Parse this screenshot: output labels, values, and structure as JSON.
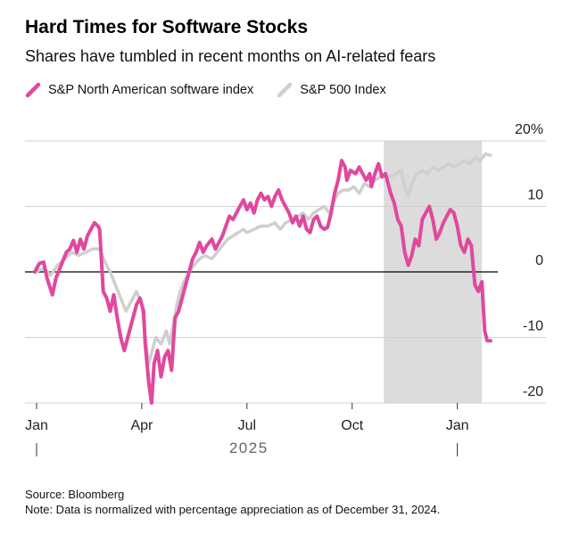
{
  "title": "Hard Times for Software Stocks",
  "subtitle": "Shares have tumbled in recent months on AI-related fears",
  "source": "Source: Bloomberg",
  "note": "Note: Data is normalized with percentage appreciation as of December 31, 2024.",
  "colors": {
    "software": "#e0489e",
    "sp500": "#cfcfcf",
    "shade": "#dcdcdc",
    "grid": "#d2d2d2",
    "zero": "#000000"
  },
  "chart_data": {
    "type": "line",
    "title": "Hard Times for Software Stocks",
    "subtitle": "Shares have tumbled in recent months on AI-related fears",
    "xlabel": "2025",
    "ylabel": "%",
    "ylim": [
      -20,
      20
    ],
    "yticks": [
      {
        "value": 20,
        "label": "20%"
      },
      {
        "value": 10,
        "label": "10"
      },
      {
        "value": 0,
        "label": "0"
      },
      {
        "value": -10,
        "label": "-10"
      },
      {
        "value": -20,
        "label": "-20"
      }
    ],
    "xlim": [
      0,
      13.0
    ],
    "xticks": [
      {
        "value": 0,
        "label": "Jan",
        "year_tick": true
      },
      {
        "value": 3,
        "label": "Apr",
        "year_tick": false
      },
      {
        "value": 6,
        "label": "Jul",
        "year_tick": false
      },
      {
        "value": 9,
        "label": "Oct",
        "year_tick": false
      },
      {
        "value": 12,
        "label": "Jan",
        "year_tick": true
      }
    ],
    "x_unit": "months since Jan 1, 2025",
    "shaded_region": [
      9.9,
      12.7
    ],
    "legend": [
      "S&P North American software index",
      "S&P 500 Index"
    ],
    "series": [
      {
        "name": "S&P North American software index",
        "color": "#e0489e",
        "points": [
          [
            -0.05,
            0
          ],
          [
            0.08,
            1.3
          ],
          [
            0.2,
            1.5
          ],
          [
            0.3,
            -1
          ],
          [
            0.45,
            -3.5
          ],
          [
            0.55,
            -1
          ],
          [
            0.7,
            1
          ],
          [
            0.85,
            3
          ],
          [
            0.95,
            3.5
          ],
          [
            1.05,
            4.8
          ],
          [
            1.15,
            3
          ],
          [
            1.25,
            5
          ],
          [
            1.35,
            3.5
          ],
          [
            1.45,
            5.5
          ],
          [
            1.55,
            6.5
          ],
          [
            1.65,
            7.5
          ],
          [
            1.75,
            7
          ],
          [
            1.8,
            6.5
          ],
          [
            1.9,
            -3
          ],
          [
            2,
            -4
          ],
          [
            2.1,
            -6
          ],
          [
            2.2,
            -3.5
          ],
          [
            2.3,
            -7
          ],
          [
            2.4,
            -10
          ],
          [
            2.5,
            -12
          ],
          [
            2.6,
            -10
          ],
          [
            2.7,
            -8
          ],
          [
            2.85,
            -5
          ],
          [
            2.95,
            -4
          ],
          [
            3.05,
            -6
          ],
          [
            3.1,
            -11
          ],
          [
            3.2,
            -17
          ],
          [
            3.28,
            -20
          ],
          [
            3.35,
            -14
          ],
          [
            3.45,
            -12
          ],
          [
            3.55,
            -16
          ],
          [
            3.65,
            -13
          ],
          [
            3.75,
            -12
          ],
          [
            3.85,
            -15
          ],
          [
            3.95,
            -7
          ],
          [
            4.05,
            -6
          ],
          [
            4.15,
            -4
          ],
          [
            4.25,
            -2
          ],
          [
            4.35,
            0
          ],
          [
            4.45,
            2
          ],
          [
            4.55,
            3
          ],
          [
            4.65,
            4.5
          ],
          [
            4.75,
            3
          ],
          [
            4.85,
            4
          ],
          [
            5,
            5
          ],
          [
            5.1,
            3.5
          ],
          [
            5.2,
            4.5
          ],
          [
            5.3,
            5.5
          ],
          [
            5.4,
            7
          ],
          [
            5.5,
            8.5
          ],
          [
            5.6,
            8
          ],
          [
            5.7,
            9
          ],
          [
            5.8,
            10
          ],
          [
            5.9,
            11
          ],
          [
            6,
            9.5
          ],
          [
            6.1,
            10.5
          ],
          [
            6.2,
            9
          ],
          [
            6.3,
            11
          ],
          [
            6.4,
            12
          ],
          [
            6.5,
            11
          ],
          [
            6.6,
            11.5
          ],
          [
            6.7,
            10
          ],
          [
            6.8,
            11.5
          ],
          [
            6.9,
            12.5
          ],
          [
            7,
            11
          ],
          [
            7.1,
            10
          ],
          [
            7.2,
            9
          ],
          [
            7.3,
            7.5
          ],
          [
            7.4,
            8.5
          ],
          [
            7.5,
            7
          ],
          [
            7.6,
            8.5
          ],
          [
            7.7,
            6.5
          ],
          [
            7.8,
            6
          ],
          [
            7.9,
            8
          ],
          [
            8,
            8.5
          ],
          [
            8.1,
            7
          ],
          [
            8.2,
            6.5
          ],
          [
            8.3,
            6.8
          ],
          [
            8.4,
            9
          ],
          [
            8.5,
            12
          ],
          [
            8.6,
            14
          ],
          [
            8.7,
            17
          ],
          [
            8.8,
            16
          ],
          [
            8.85,
            14
          ],
          [
            8.95,
            15.5
          ],
          [
            9.1,
            15
          ],
          [
            9.2,
            16
          ],
          [
            9.3,
            15
          ],
          [
            9.4,
            14
          ],
          [
            9.5,
            15
          ],
          [
            9.55,
            13
          ],
          [
            9.65,
            15
          ],
          [
            9.75,
            16.5
          ],
          [
            9.85,
            14.5
          ],
          [
            9.95,
            15
          ],
          [
            10,
            14
          ],
          [
            10.1,
            12
          ],
          [
            10.2,
            10.5
          ],
          [
            10.3,
            8
          ],
          [
            10.4,
            7
          ],
          [
            10.5,
            3
          ],
          [
            10.6,
            1
          ],
          [
            10.7,
            2.5
          ],
          [
            10.8,
            5
          ],
          [
            10.9,
            4
          ],
          [
            11,
            8
          ],
          [
            11.1,
            9
          ],
          [
            11.2,
            10
          ],
          [
            11.3,
            8
          ],
          [
            11.4,
            5
          ],
          [
            11.5,
            6
          ],
          [
            11.6,
            7.5
          ],
          [
            11.7,
            8.5
          ],
          [
            11.8,
            9.5
          ],
          [
            11.9,
            9
          ],
          [
            12,
            7
          ],
          [
            12.1,
            4
          ],
          [
            12.2,
            3
          ],
          [
            12.3,
            5
          ],
          [
            12.4,
            4
          ],
          [
            12.5,
            -2
          ],
          [
            12.6,
            -3
          ],
          [
            12.7,
            -1.5
          ],
          [
            12.78,
            -9
          ],
          [
            12.85,
            -10.5
          ],
          [
            12.95,
            -10.5
          ]
        ]
      },
      {
        "name": "S&P 500 Index",
        "color": "#cfcfcf",
        "points": [
          [
            -0.05,
            0
          ],
          [
            0.2,
            0.5
          ],
          [
            0.4,
            -0.5
          ],
          [
            0.6,
            1
          ],
          [
            0.8,
            2
          ],
          [
            1,
            3
          ],
          [
            1.2,
            2.5
          ],
          [
            1.4,
            3
          ],
          [
            1.6,
            3.5
          ],
          [
            1.8,
            3.5
          ],
          [
            1.95,
            1.5
          ],
          [
            2.1,
            0
          ],
          [
            2.25,
            -2
          ],
          [
            2.4,
            -4
          ],
          [
            2.55,
            -6
          ],
          [
            2.7,
            -4.5
          ],
          [
            2.85,
            -3
          ],
          [
            3,
            -5
          ],
          [
            3.1,
            -10
          ],
          [
            3.2,
            -14
          ],
          [
            3.3,
            -12
          ],
          [
            3.4,
            -10
          ],
          [
            3.55,
            -11
          ],
          [
            3.7,
            -9
          ],
          [
            3.8,
            -11
          ],
          [
            3.9,
            -8
          ],
          [
            4,
            -5
          ],
          [
            4.1,
            -3
          ],
          [
            4.2,
            -1.5
          ],
          [
            4.35,
            0
          ],
          [
            4.5,
            1
          ],
          [
            4.65,
            2
          ],
          [
            4.8,
            2.5
          ],
          [
            5,
            2
          ],
          [
            5.15,
            3
          ],
          [
            5.3,
            4
          ],
          [
            5.45,
            5
          ],
          [
            5.6,
            5.5
          ],
          [
            5.75,
            6
          ],
          [
            5.9,
            6.5
          ],
          [
            6,
            6
          ],
          [
            6.2,
            6.5
          ],
          [
            6.4,
            7
          ],
          [
            6.6,
            7
          ],
          [
            6.8,
            7.5
          ],
          [
            6.95,
            6.5
          ],
          [
            7.1,
            7.5
          ],
          [
            7.3,
            8
          ],
          [
            7.45,
            8.5
          ],
          [
            7.6,
            9
          ],
          [
            7.75,
            8
          ],
          [
            7.9,
            9
          ],
          [
            8.05,
            9.5
          ],
          [
            8.2,
            10
          ],
          [
            8.35,
            9
          ],
          [
            8.5,
            11
          ],
          [
            8.6,
            12
          ],
          [
            8.75,
            12.5
          ],
          [
            8.9,
            12.5
          ],
          [
            9.05,
            13
          ],
          [
            9.2,
            12
          ],
          [
            9.35,
            13.5
          ],
          [
            9.5,
            13
          ],
          [
            9.65,
            14
          ],
          [
            9.8,
            14.5
          ],
          [
            9.95,
            15
          ],
          [
            10.1,
            14.5
          ],
          [
            10.25,
            15
          ],
          [
            10.4,
            15.5
          ],
          [
            10.5,
            13
          ],
          [
            10.6,
            11.5
          ],
          [
            10.7,
            13.5
          ],
          [
            10.85,
            15
          ],
          [
            11,
            15.5
          ],
          [
            11.15,
            15
          ],
          [
            11.3,
            16
          ],
          [
            11.45,
            15.5
          ],
          [
            11.6,
            16
          ],
          [
            11.75,
            16.5
          ],
          [
            11.9,
            16
          ],
          [
            12.05,
            16.5
          ],
          [
            12.2,
            17
          ],
          [
            12.35,
            16.5
          ],
          [
            12.5,
            17.5
          ],
          [
            12.65,
            17
          ],
          [
            12.8,
            18
          ],
          [
            12.95,
            17.8
          ]
        ]
      }
    ]
  }
}
